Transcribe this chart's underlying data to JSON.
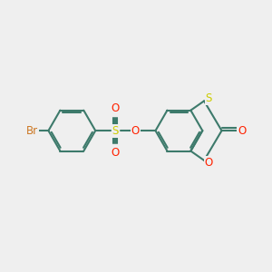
{
  "background_color": "#efefef",
  "bond_color": "#3d7a6b",
  "bond_width": 1.5,
  "atom_colors": {
    "Br": "#cc7722",
    "S_sulfonyl": "#cccc00",
    "S_thio": "#cccc00",
    "O": "#ff2200",
    "C": "#3d7a6b"
  },
  "font_size": 8.5
}
